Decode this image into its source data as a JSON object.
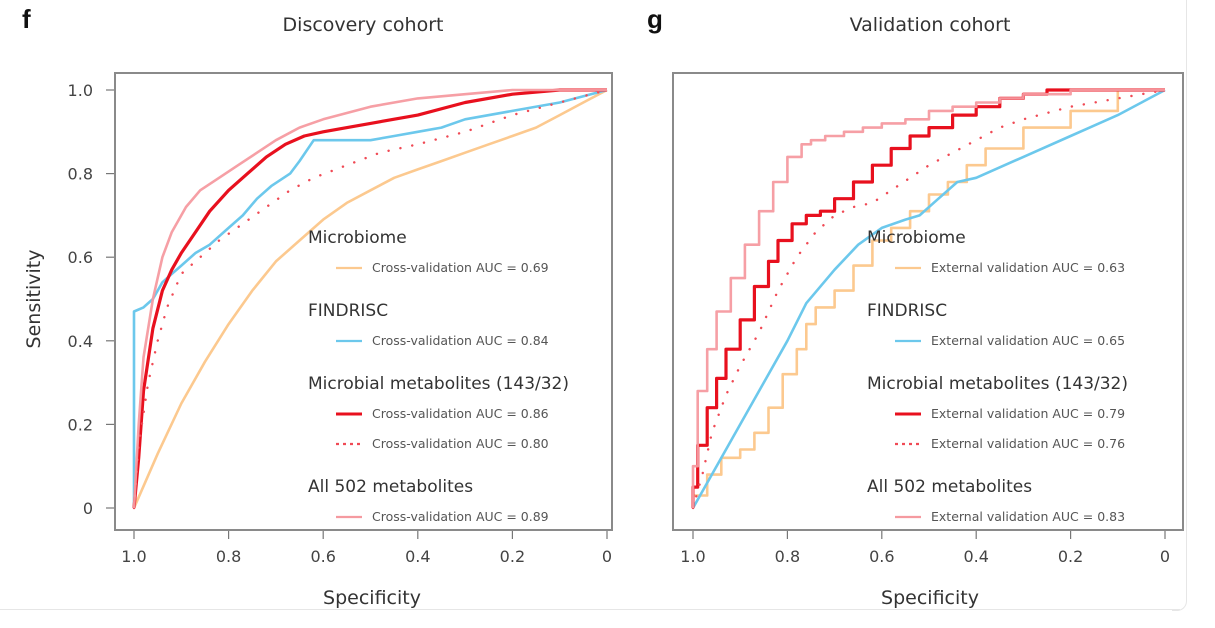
{
  "chart_data": [
    {
      "type": "line",
      "panel_letter": "f",
      "title": "Discovery cohort",
      "xlabel": "Specificity",
      "ylabel": "Sensitivity",
      "xlim": [
        1.0,
        0
      ],
      "ylim": [
        0,
        1.0
      ],
      "x_reversed": true,
      "grid": false,
      "legend_position": "bottom-right",
      "xticks": [
        1.0,
        0.8,
        0.6,
        0.4,
        0.2,
        0
      ],
      "xtick_labels": [
        "1.0",
        "0.8",
        "0.6",
        "0.4",
        "0.2",
        "0"
      ],
      "yticks": [
        0,
        0.2,
        0.4,
        0.6,
        0.8,
        1.0
      ],
      "ytick_labels": [
        "0",
        "0.2",
        "0.4",
        "0.6",
        "0.8",
        "1.0"
      ],
      "legend_groups": [
        {
          "title": "Microbiome",
          "entries": [
            {
              "series": "microbiome",
              "label": "Cross-validation AUC = 0.69"
            }
          ]
        },
        {
          "title": "FINDRISC",
          "entries": [
            {
              "series": "findrisc",
              "label": "Cross-validation AUC = 0.84"
            }
          ]
        },
        {
          "title": "Microbial metabolites (143/32)",
          "entries": [
            {
              "series": "microbial_143",
              "label": "Cross-validation AUC = 0.86"
            },
            {
              "series": "microbial_32",
              "label": "Cross-validation AUC = 0.80"
            }
          ]
        },
        {
          "title": "All 502 metabolites",
          "entries": [
            {
              "series": "all502",
              "label": "Cross-validation AUC = 0.89"
            }
          ]
        }
      ],
      "series": [
        {
          "id": "microbiome",
          "name": "Microbiome",
          "auc": 0.69,
          "color": "#fcc98f",
          "style": "solid",
          "specificity": [
            1.0,
            0.95,
            0.9,
            0.85,
            0.8,
            0.75,
            0.7,
            0.65,
            0.6,
            0.55,
            0.5,
            0.45,
            0.4,
            0.35,
            0.3,
            0.25,
            0.2,
            0.15,
            0.1,
            0.05,
            0.0
          ],
          "sensitivity": [
            0.0,
            0.13,
            0.25,
            0.35,
            0.44,
            0.52,
            0.59,
            0.64,
            0.69,
            0.73,
            0.76,
            0.79,
            0.81,
            0.83,
            0.85,
            0.87,
            0.89,
            0.91,
            0.94,
            0.97,
            1.0
          ]
        },
        {
          "id": "findrisc",
          "name": "FINDRISC",
          "auc": 0.84,
          "color": "#6cc8ec",
          "style": "solid",
          "specificity": [
            1.0,
            1.0,
            0.98,
            0.96,
            0.94,
            0.92,
            0.9,
            0.87,
            0.84,
            0.8,
            0.77,
            0.74,
            0.71,
            0.67,
            0.65,
            0.62,
            0.5,
            0.45,
            0.4,
            0.35,
            0.3,
            0.2,
            0.1,
            0.0
          ],
          "sensitivity": [
            0.0,
            0.47,
            0.48,
            0.5,
            0.54,
            0.56,
            0.58,
            0.61,
            0.63,
            0.67,
            0.7,
            0.74,
            0.77,
            0.8,
            0.83,
            0.88,
            0.88,
            0.89,
            0.9,
            0.91,
            0.93,
            0.95,
            0.97,
            1.0
          ]
        },
        {
          "id": "microbial_143",
          "name": "Microbial metabolites (143/32)",
          "auc": 0.86,
          "color": "#e8101e",
          "style": "solid",
          "specificity": [
            1.0,
            0.99,
            0.98,
            0.96,
            0.94,
            0.92,
            0.9,
            0.87,
            0.84,
            0.8,
            0.76,
            0.72,
            0.68,
            0.64,
            0.6,
            0.5,
            0.4,
            0.3,
            0.2,
            0.1,
            0.0
          ],
          "sensitivity": [
            0.0,
            0.12,
            0.28,
            0.43,
            0.52,
            0.57,
            0.61,
            0.66,
            0.71,
            0.76,
            0.8,
            0.84,
            0.87,
            0.89,
            0.9,
            0.92,
            0.94,
            0.97,
            0.99,
            1.0,
            1.0
          ]
        },
        {
          "id": "microbial_32",
          "name": "Microbial metabolites (143/32)",
          "auc": 0.8,
          "color": "#f04a55",
          "style": "dotted",
          "specificity": [
            1.0,
            0.99,
            0.97,
            0.95,
            0.93,
            0.9,
            0.86,
            0.82,
            0.77,
            0.72,
            0.67,
            0.62,
            0.55,
            0.48,
            0.4,
            0.3,
            0.2,
            0.1,
            0.0
          ],
          "sensitivity": [
            0.0,
            0.15,
            0.3,
            0.4,
            0.48,
            0.56,
            0.6,
            0.64,
            0.68,
            0.72,
            0.76,
            0.79,
            0.82,
            0.85,
            0.87,
            0.9,
            0.94,
            0.97,
            1.0
          ]
        },
        {
          "id": "all502",
          "name": "All 502 metabolites",
          "auc": 0.89,
          "color": "#f59aa0",
          "style": "solid",
          "specificity": [
            1.0,
            0.99,
            0.98,
            0.96,
            0.94,
            0.92,
            0.89,
            0.86,
            0.82,
            0.78,
            0.74,
            0.7,
            0.65,
            0.6,
            0.5,
            0.4,
            0.3,
            0.2,
            0.1,
            0.0
          ],
          "sensitivity": [
            0.0,
            0.2,
            0.36,
            0.5,
            0.6,
            0.66,
            0.72,
            0.76,
            0.79,
            0.82,
            0.85,
            0.88,
            0.91,
            0.93,
            0.96,
            0.98,
            0.99,
            1.0,
            1.0,
            1.0
          ]
        }
      ]
    },
    {
      "type": "line",
      "panel_letter": "g",
      "title": "Validation cohort",
      "xlabel": "Specificity",
      "ylabel": "",
      "xlim": [
        1.0,
        0
      ],
      "ylim": [
        0,
        1.0
      ],
      "x_reversed": true,
      "grid": false,
      "legend_position": "bottom-right",
      "xticks": [
        1.0,
        0.8,
        0.6,
        0.4,
        0.2,
        0
      ],
      "xtick_labels": [
        "1.0",
        "0.8",
        "0.6",
        "0.4",
        "0.2",
        "0"
      ],
      "legend_groups": [
        {
          "title": "Microbiome",
          "entries": [
            {
              "series": "microbiome",
              "label": "External validation AUC = 0.63"
            }
          ]
        },
        {
          "title": "FINDRISC",
          "entries": [
            {
              "series": "findrisc",
              "label": "External validation AUC = 0.65"
            }
          ]
        },
        {
          "title": "Microbial metabolites (143/32)",
          "entries": [
            {
              "series": "microbial_143",
              "label": "External validation AUC = 0.79"
            },
            {
              "series": "microbial_32",
              "label": "External validation AUC = 0.76"
            }
          ]
        },
        {
          "title": "All 502 metabolites",
          "entries": [
            {
              "series": "all502",
              "label": "External validation AUC = 0.83"
            }
          ]
        }
      ],
      "series": [
        {
          "id": "microbiome",
          "name": "Microbiome",
          "auc": 0.63,
          "color": "#fcc98f",
          "style": "step",
          "specificity": [
            1.0,
            0.97,
            0.94,
            0.9,
            0.87,
            0.84,
            0.81,
            0.78,
            0.76,
            0.74,
            0.7,
            0.66,
            0.62,
            0.58,
            0.54,
            0.5,
            0.46,
            0.42,
            0.38,
            0.3,
            0.2,
            0.1,
            0.0
          ],
          "sensitivity": [
            0.0,
            0.03,
            0.08,
            0.12,
            0.14,
            0.18,
            0.24,
            0.32,
            0.38,
            0.44,
            0.48,
            0.52,
            0.58,
            0.64,
            0.67,
            0.71,
            0.75,
            0.78,
            0.82,
            0.86,
            0.91,
            0.95,
            1.0
          ]
        },
        {
          "id": "findrisc",
          "name": "FINDRISC",
          "auc": 0.65,
          "color": "#6cc8ec",
          "style": "solid",
          "specificity": [
            1.0,
            0.9,
            0.8,
            0.76,
            0.7,
            0.65,
            0.6,
            0.55,
            0.52,
            0.48,
            0.44,
            0.4,
            0.3,
            0.2,
            0.1,
            0.0
          ],
          "sensitivity": [
            0.0,
            0.2,
            0.4,
            0.49,
            0.57,
            0.63,
            0.67,
            0.69,
            0.7,
            0.74,
            0.78,
            0.79,
            0.84,
            0.89,
            0.94,
            1.0
          ]
        },
        {
          "id": "microbial_143",
          "name": "Microbial metabolites (143/32)",
          "auc": 0.79,
          "color": "#e8101e",
          "style": "step",
          "specificity": [
            1.0,
            0.99,
            0.97,
            0.95,
            0.93,
            0.9,
            0.87,
            0.84,
            0.82,
            0.79,
            0.76,
            0.73,
            0.7,
            0.66,
            0.62,
            0.58,
            0.54,
            0.5,
            0.45,
            0.4,
            0.35,
            0.3,
            0.25,
            0.2,
            0.1,
            0.0
          ],
          "sensitivity": [
            0.0,
            0.05,
            0.15,
            0.24,
            0.31,
            0.38,
            0.45,
            0.53,
            0.59,
            0.64,
            0.68,
            0.7,
            0.71,
            0.74,
            0.78,
            0.82,
            0.86,
            0.89,
            0.91,
            0.94,
            0.96,
            0.98,
            0.99,
            1.0,
            1.0,
            1.0
          ]
        },
        {
          "id": "microbial_32",
          "name": "Microbial metabolites (143/32)",
          "auc": 0.76,
          "color": "#f04a55",
          "style": "dotted",
          "specificity": [
            1.0,
            0.98,
            0.96,
            0.93,
            0.9,
            0.86,
            0.82,
            0.78,
            0.74,
            0.7,
            0.66,
            0.62,
            0.58,
            0.54,
            0.5,
            0.45,
            0.4,
            0.35,
            0.3,
            0.2,
            0.1,
            0.0
          ],
          "sensitivity": [
            0.0,
            0.08,
            0.18,
            0.27,
            0.34,
            0.42,
            0.52,
            0.6,
            0.66,
            0.7,
            0.72,
            0.73,
            0.76,
            0.79,
            0.82,
            0.85,
            0.88,
            0.91,
            0.93,
            0.96,
            0.98,
            1.0
          ]
        },
        {
          "id": "all502",
          "name": "All 502 metabolites",
          "auc": 0.83,
          "color": "#f59aa0",
          "style": "step",
          "specificity": [
            1.0,
            0.99,
            0.97,
            0.95,
            0.92,
            0.89,
            0.86,
            0.83,
            0.8,
            0.77,
            0.75,
            0.72,
            0.68,
            0.64,
            0.6,
            0.55,
            0.5,
            0.45,
            0.4,
            0.35,
            0.3,
            0.2,
            0.1,
            0.0
          ],
          "sensitivity": [
            0.0,
            0.1,
            0.28,
            0.38,
            0.47,
            0.55,
            0.63,
            0.71,
            0.78,
            0.84,
            0.87,
            0.88,
            0.89,
            0.9,
            0.91,
            0.92,
            0.93,
            0.95,
            0.96,
            0.97,
            0.98,
            0.99,
            1.0,
            1.0
          ]
        }
      ]
    }
  ]
}
